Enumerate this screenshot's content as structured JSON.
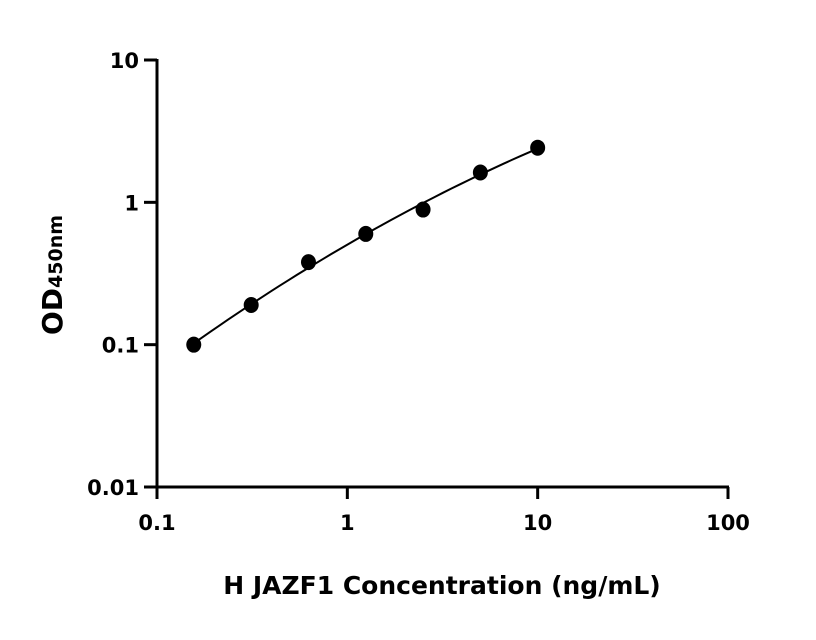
{
  "chart_data": {
    "type": "scatter",
    "title": "",
    "xlabel": "H JAZF1 Concentration (ng/mL)",
    "ylabel_main": "OD",
    "ylabel_sub": "450nm",
    "x_scale": "log",
    "y_scale": "log",
    "xlim": [
      0.1,
      100
    ],
    "ylim": [
      0.01,
      10
    ],
    "x_ticks": [
      "0.1",
      "1",
      "10",
      "100"
    ],
    "y_ticks": [
      "0.01",
      "0.1",
      "1",
      "10"
    ],
    "grid": false,
    "fit_line": true,
    "color": "#000000",
    "x": [
      0.156,
      0.3125,
      0.625,
      1.25,
      2.5,
      5,
      10
    ],
    "y": [
      0.1,
      0.19,
      0.38,
      0.6,
      0.89,
      1.62,
      2.42
    ]
  }
}
